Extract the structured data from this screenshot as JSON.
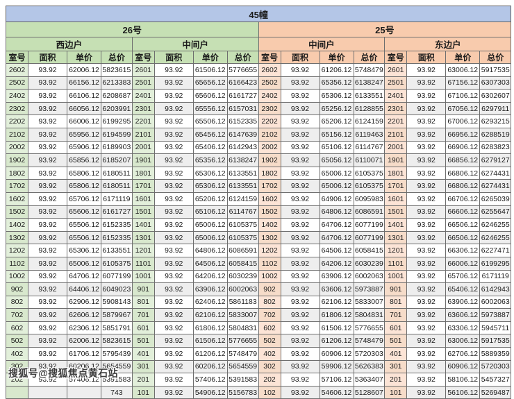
{
  "title": "45幢",
  "watermark": "搜狐号@搜狐焦点黄石站",
  "colors": {
    "blue": "#b4c6e7",
    "green": "#c6e0b4",
    "green_light": "#e2efda",
    "peach": "#f8cbad",
    "peach_light": "#fce4d6"
  },
  "col_headers": [
    "室号",
    "面积",
    "单价",
    "总价"
  ],
  "buildings": [
    {
      "label": "26号",
      "sections": [
        {
          "label": "西边户",
          "rows": [
            [
              "2602",
              "93.92",
              "62006.12",
              "5823615"
            ],
            [
              "2502",
              "93.92",
              "66156.12",
              "6213383"
            ],
            [
              "2402",
              "93.92",
              "66106.12",
              "6208687"
            ],
            [
              "2302",
              "93.92",
              "66056.12",
              "6203991"
            ],
            [
              "2202",
              "93.92",
              "66006.12",
              "6199295"
            ],
            [
              "2102",
              "93.92",
              "65956.12",
              "6194599"
            ],
            [
              "2002",
              "93.92",
              "65906.12",
              "6189903"
            ],
            [
              "1902",
              "93.92",
              "65856.12",
              "6185207"
            ],
            [
              "1802",
              "93.92",
              "65806.12",
              "6180511"
            ],
            [
              "1702",
              "93.92",
              "65806.12",
              "6180511"
            ],
            [
              "1602",
              "93.92",
              "65706.12",
              "6171119"
            ],
            [
              "1502",
              "93.92",
              "65606.12",
              "6161727"
            ],
            [
              "1402",
              "93.92",
              "65506.12",
              "6152335"
            ],
            [
              "1302",
              "93.92",
              "65506.12",
              "6152335"
            ],
            [
              "1202",
              "93.92",
              "65306.12",
              "6133551"
            ],
            [
              "1102",
              "93.92",
              "65006.12",
              "6105375"
            ],
            [
              "1002",
              "93.92",
              "64706.12",
              "6077199"
            ],
            [
              "902",
              "93.92",
              "64406.12",
              "6049023"
            ],
            [
              "802",
              "93.92",
              "62906.12",
              "5908143"
            ],
            [
              "702",
              "93.92",
              "62606.12",
              "5879967"
            ],
            [
              "602",
              "93.92",
              "62306.12",
              "5851791"
            ],
            [
              "502",
              "93.92",
              "62006.12",
              "5823615"
            ],
            [
              "402",
              "93.92",
              "61706.12",
              "5795439"
            ],
            [
              "302",
              "93.92",
              "60206.12",
              "5654559"
            ],
            [
              "202",
              "93.92",
              "57406.12",
              "5391583"
            ],
            [
              "",
              "",
              "",
              "743"
            ]
          ]
        },
        {
          "label": "中间户",
          "rows": [
            [
              "2601",
              "93.92",
              "61506.12",
              "5776655"
            ],
            [
              "2501",
              "93.92",
              "65656.12",
              "6166423"
            ],
            [
              "2401",
              "93.92",
              "65606.12",
              "6161727"
            ],
            [
              "2301",
              "93.92",
              "65556.12",
              "6157031"
            ],
            [
              "2201",
              "93.92",
              "65506.12",
              "6152335"
            ],
            [
              "2101",
              "93.92",
              "65456.12",
              "6147639"
            ],
            [
              "2001",
              "93.92",
              "65406.12",
              "6142943"
            ],
            [
              "1901",
              "93.92",
              "65356.12",
              "6138247"
            ],
            [
              "1801",
              "93.92",
              "65306.12",
              "6133551"
            ],
            [
              "1701",
              "93.92",
              "65306.12",
              "6133551"
            ],
            [
              "1601",
              "93.92",
              "65206.12",
              "6124159"
            ],
            [
              "1501",
              "93.92",
              "65106.12",
              "6114767"
            ],
            [
              "1401",
              "93.92",
              "65006.12",
              "6105375"
            ],
            [
              "1301",
              "93.92",
              "65006.12",
              "6105375"
            ],
            [
              "1201",
              "93.92",
              "64806.12",
              "6086591"
            ],
            [
              "1101",
              "93.92",
              "64506.12",
              "6058415"
            ],
            [
              "1001",
              "93.92",
              "64206.12",
              "6030239"
            ],
            [
              "901",
              "93.92",
              "63906.12",
              "6002063"
            ],
            [
              "801",
              "93.92",
              "62406.12",
              "5861183"
            ],
            [
              "701",
              "93.92",
              "62106.12",
              "5833007"
            ],
            [
              "601",
              "93.92",
              "61806.12",
              "5804831"
            ],
            [
              "501",
              "93.92",
              "61506.12",
              "5776655"
            ],
            [
              "401",
              "93.92",
              "61206.12",
              "5748479"
            ],
            [
              "301",
              "93.92",
              "60206.12",
              "5654559"
            ],
            [
              "201",
              "93.92",
              "57406.12",
              "5391583"
            ],
            [
              "101",
              "93.92",
              "54906.12",
              "5156783"
            ]
          ]
        }
      ]
    },
    {
      "label": "25号",
      "sections": [
        {
          "label": "中间户",
          "rows": [
            [
              "2602",
              "93.92",
              "61206.12",
              "5748479"
            ],
            [
              "2502",
              "93.92",
              "65356.12",
              "6138247"
            ],
            [
              "2402",
              "93.92",
              "65306.12",
              "6133551"
            ],
            [
              "2302",
              "93.92",
              "65256.12",
              "6128855"
            ],
            [
              "2202",
              "93.92",
              "65206.12",
              "6124159"
            ],
            [
              "2102",
              "93.92",
              "65156.12",
              "6119463"
            ],
            [
              "2002",
              "93.92",
              "65106.12",
              "6114767"
            ],
            [
              "1902",
              "93.92",
              "65056.12",
              "6110071"
            ],
            [
              "1802",
              "93.92",
              "65006.12",
              "6105375"
            ],
            [
              "1702",
              "93.92",
              "65006.12",
              "6105375"
            ],
            [
              "1602",
              "93.92",
              "64906.12",
              "6095983"
            ],
            [
              "1502",
              "93.92",
              "64806.12",
              "6086591"
            ],
            [
              "1402",
              "93.92",
              "64706.12",
              "6077199"
            ],
            [
              "1302",
              "93.92",
              "64706.12",
              "6077199"
            ],
            [
              "1202",
              "93.92",
              "64506.12",
              "6058415"
            ],
            [
              "1102",
              "93.92",
              "64206.12",
              "6030239"
            ],
            [
              "1002",
              "93.92",
              "63906.12",
              "6002063"
            ],
            [
              "902",
              "93.92",
              "63606.12",
              "5973887"
            ],
            [
              "802",
              "93.92",
              "62106.12",
              "5833007"
            ],
            [
              "702",
              "93.92",
              "61806.12",
              "5804831"
            ],
            [
              "602",
              "93.92",
              "61506.12",
              "5776655"
            ],
            [
              "502",
              "93.92",
              "61206.12",
              "5748479"
            ],
            [
              "402",
              "93.92",
              "60906.12",
              "5720303"
            ],
            [
              "302",
              "93.92",
              "59906.12",
              "5626383"
            ],
            [
              "202",
              "93.92",
              "57106.12",
              "5363407"
            ],
            [
              "102",
              "93.92",
              "54606.12",
              "5128607"
            ]
          ]
        },
        {
          "label": "东边户",
          "rows": [
            [
              "2601",
              "93.92",
              "63006.12",
              "5917535"
            ],
            [
              "2501",
              "93.92",
              "67156.12",
              "6307303"
            ],
            [
              "2401",
              "93.92",
              "67106.12",
              "6302607"
            ],
            [
              "2301",
              "93.92",
              "67056.12",
              "6297911"
            ],
            [
              "2201",
              "93.92",
              "67006.12",
              "6293215"
            ],
            [
              "2101",
              "93.92",
              "66956.12",
              "6288519"
            ],
            [
              "2001",
              "93.92",
              "66906.12",
              "6283823"
            ],
            [
              "1901",
              "93.92",
              "66856.12",
              "6279127"
            ],
            [
              "1801",
              "93.92",
              "66806.12",
              "6274431"
            ],
            [
              "1701",
              "93.92",
              "66806.12",
              "6274431"
            ],
            [
              "1601",
              "93.92",
              "66706.12",
              "6265039"
            ],
            [
              "1501",
              "93.92",
              "66606.12",
              "6255647"
            ],
            [
              "1401",
              "93.92",
              "66506.12",
              "6246255"
            ],
            [
              "1301",
              "93.92",
              "66506.12",
              "6246255"
            ],
            [
              "1201",
              "93.92",
              "66306.12",
              "6227471"
            ],
            [
              "1101",
              "93.92",
              "66006.12",
              "6199295"
            ],
            [
              "1001",
              "93.92",
              "65706.12",
              "6171119"
            ],
            [
              "901",
              "93.92",
              "65406.12",
              "6142943"
            ],
            [
              "801",
              "93.92",
              "63906.12",
              "6002063"
            ],
            [
              "701",
              "93.92",
              "63606.12",
              "5973887"
            ],
            [
              "601",
              "93.92",
              "63306.12",
              "5945711"
            ],
            [
              "501",
              "93.92",
              "63006.12",
              "5917535"
            ],
            [
              "401",
              "93.92",
              "62706.12",
              "5889359"
            ],
            [
              "301",
              "93.92",
              "60906.12",
              "5720303"
            ],
            [
              "201",
              "93.92",
              "58106.12",
              "5457327"
            ],
            [
              "101",
              "93.92",
              "56106.12",
              "5269487"
            ]
          ]
        }
      ]
    }
  ]
}
